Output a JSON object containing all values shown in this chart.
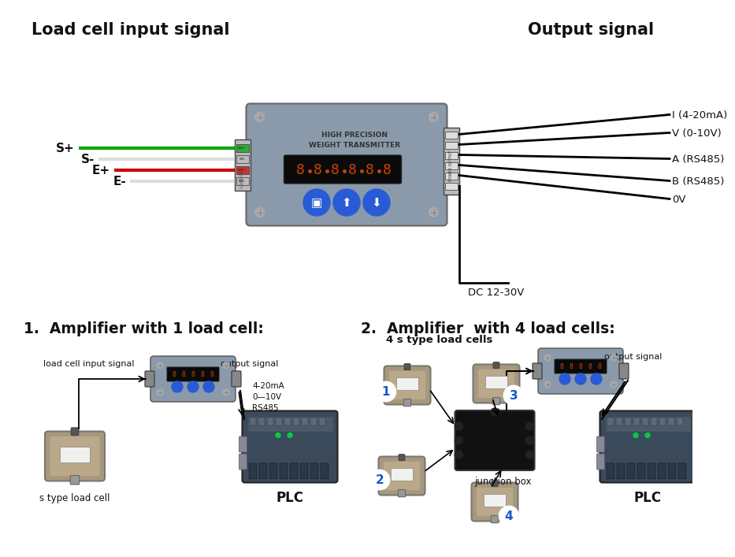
{
  "bg_color": "#ffffff",
  "title_left": "Load cell input signal",
  "title_right": "Output signal",
  "right_labels": [
    "I (4-20mA)",
    "V (0-10V)",
    "A (RS485)",
    "B (RS485)",
    "0V",
    "DC 12-30V"
  ],
  "section1_title": "1.  Amplifier with 1 load cell:",
  "section2_title": "2.  Amplifier  with 4 load cells:",
  "plc_label": "PLC",
  "s_type_label": "s type load cell",
  "load_cell_input": "load cell input signal",
  "output_signal": "output signal",
  "output_types": "4-20mA\n0—10V\nRS485",
  "junction_box": "junction box",
  "four_cells_label": "4 s type load cells",
  "device_color": "#8a9aaa",
  "button_color": "#2a5bd7",
  "wire_green": "#00aa00",
  "wire_red": "#cc0000",
  "wire_white": "#dddddd",
  "wire_black": "#111111",
  "cell_color": "#9a8a70",
  "plc_color": "#3a4a5a",
  "junction_color": "#111111",
  "arrow_color": "#1a55cc",
  "text_color": "#111111",
  "screw_color": "#aaaaaa"
}
